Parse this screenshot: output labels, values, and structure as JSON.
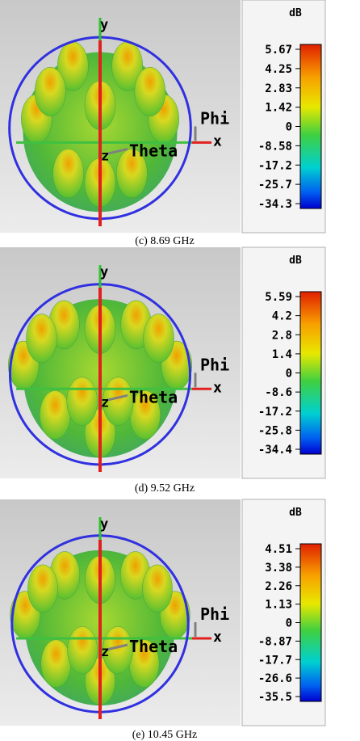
{
  "panels": [
    {
      "axes": {
        "y": "y",
        "phi": "Phi",
        "x": "x",
        "z": "z",
        "theta": "Theta"
      },
      "colorbar": {
        "unit": "dB",
        "ticks": [
          "5.67",
          "4.25",
          "2.83",
          "1.42",
          "0",
          "-8.58",
          "-17.2",
          "-25.7",
          "-34.3"
        ]
      },
      "caption": "(c) 8.69 GHz"
    },
    {
      "axes": {
        "y": "y",
        "phi": "Phi",
        "x": "x",
        "z": "z",
        "theta": "Theta"
      },
      "colorbar": {
        "unit": "dB",
        "ticks": [
          "5.59",
          "4.2",
          "2.8",
          "1.4",
          "0",
          "-8.6",
          "-17.2",
          "-25.8",
          "-34.4"
        ]
      },
      "caption": "(d) 9.52 GHz"
    },
    {
      "axes": {
        "y": "y",
        "phi": "Phi",
        "x": "x",
        "z": "z",
        "theta": "Theta"
      },
      "colorbar": {
        "unit": "dB",
        "ticks": [
          "4.51",
          "3.38",
          "2.26",
          "1.13",
          "0",
          "-8.87",
          "-17.7",
          "-26.6",
          "-35.5"
        ]
      },
      "caption": "(e) 10.45 GHz"
    }
  ]
}
